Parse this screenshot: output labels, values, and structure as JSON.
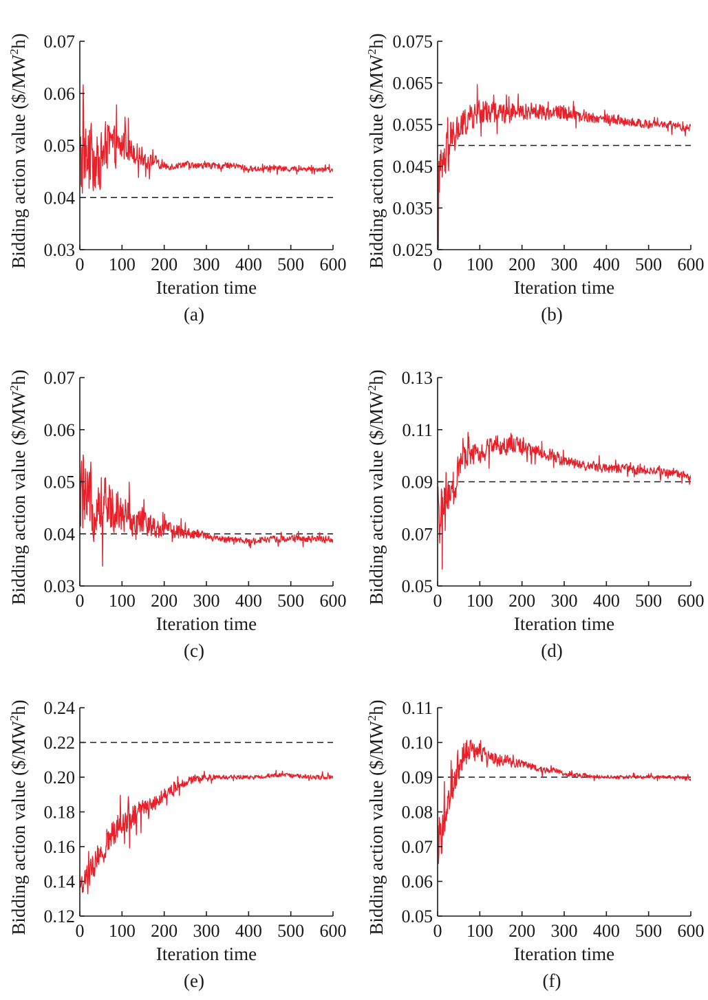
{
  "chart_data": [
    {
      "panel": "(a)",
      "type": "line",
      "xlabel": "Iteration time",
      "ylabel": "Bidding action value ($/MW",
      "ylabel_sup": "2",
      "ylabel_end": "h)",
      "xlim": [
        0,
        600
      ],
      "ylim": [
        0.03,
        0.07
      ],
      "xticks": [
        "0",
        "100",
        "200",
        "300",
        "400",
        "500",
        "600"
      ],
      "yticks": [
        "0.03",
        "0.04",
        "0.05",
        "0.06",
        "0.07"
      ],
      "reference": 0.04,
      "series": [
        {
          "color": "#e8202a",
          "x": [
            0,
            10,
            20,
            30,
            40,
            50,
            60,
            70,
            80,
            90,
            100,
            110,
            120,
            130,
            140,
            150,
            160,
            170,
            180,
            190,
            200,
            225,
            250,
            275,
            300,
            325,
            350,
            375,
            400,
            425,
            450,
            475,
            500,
            525,
            550,
            575,
            600
          ],
          "y": [
            0.045,
            0.049,
            0.047,
            0.048,
            0.046,
            0.047,
            0.05,
            0.05,
            0.05,
            0.049,
            0.05,
            0.05,
            0.049,
            0.049,
            0.048,
            0.048,
            0.047,
            0.047,
            0.047,
            0.046,
            0.046,
            0.046,
            0.0465,
            0.046,
            0.0462,
            0.046,
            0.0462,
            0.046,
            0.0455,
            0.0455,
            0.0458,
            0.0455,
            0.0455,
            0.0455,
            0.0455,
            0.0455,
            0.0452
          ],
          "noise": [
            0.015,
            0.012,
            0.011,
            0.01,
            0.009,
            0.008,
            0.008,
            0.007,
            0.006,
            0.006,
            0.006,
            0.005,
            0.004,
            0.004,
            0.003,
            0.003,
            0.0025,
            0.002,
            0.0018,
            0.0015,
            0.0012,
            0.001,
            0.001,
            0.001,
            0.001,
            0.0009,
            0.0009,
            0.0009,
            0.0009,
            0.0008,
            0.0008,
            0.0008,
            0.0008,
            0.0008,
            0.0008,
            0.0008,
            0.0008
          ]
        }
      ]
    },
    {
      "panel": "(b)",
      "type": "line",
      "xlabel": "Iteration time",
      "ylabel": "Bidding action value ($/MW",
      "ylabel_sup": "2",
      "ylabel_end": "h)",
      "xlim": [
        0,
        600
      ],
      "ylim": [
        0.025,
        0.075
      ],
      "xticks": [
        "0",
        "100",
        "200",
        "300",
        "400",
        "500",
        "600"
      ],
      "yticks": [
        "0.025",
        "0.035",
        "0.045",
        "0.055",
        "0.065",
        "0.075"
      ],
      "reference": 0.05,
      "series": [
        {
          "color": "#e8202a",
          "x": [
            0,
            10,
            20,
            30,
            40,
            50,
            60,
            70,
            80,
            90,
            100,
            120,
            140,
            160,
            180,
            200,
            225,
            250,
            275,
            300,
            325,
            350,
            375,
            400,
            425,
            450,
            475,
            500,
            525,
            550,
            575,
            600
          ],
          "y": [
            0.04,
            0.044,
            0.047,
            0.05,
            0.052,
            0.054,
            0.055,
            0.056,
            0.057,
            0.057,
            0.058,
            0.058,
            0.058,
            0.0578,
            0.058,
            0.058,
            0.0585,
            0.058,
            0.058,
            0.058,
            0.0575,
            0.057,
            0.0565,
            0.0565,
            0.056,
            0.0555,
            0.0555,
            0.055,
            0.055,
            0.055,
            0.0545,
            0.054
          ],
          "noise": [
            0.012,
            0.01,
            0.009,
            0.008,
            0.007,
            0.006,
            0.006,
            0.005,
            0.005,
            0.005,
            0.005,
            0.0045,
            0.004,
            0.004,
            0.0035,
            0.0035,
            0.003,
            0.003,
            0.003,
            0.003,
            0.0025,
            0.0025,
            0.002,
            0.002,
            0.002,
            0.0018,
            0.0015,
            0.0015,
            0.0015,
            0.0015,
            0.0015,
            0.0015
          ]
        }
      ]
    },
    {
      "panel": "(c)",
      "type": "line",
      "xlabel": "Iteration time",
      "ylabel": "Bidding action value ($/MW",
      "ylabel_sup": "2",
      "ylabel_end": "h)",
      "xlim": [
        0,
        600
      ],
      "ylim": [
        0.03,
        0.07
      ],
      "xticks": [
        "0",
        "100",
        "200",
        "300",
        "400",
        "500",
        "600"
      ],
      "yticks": [
        "0.03",
        "0.04",
        "0.05",
        "0.06",
        "0.07"
      ],
      "reference": 0.04,
      "series": [
        {
          "color": "#e8202a",
          "x": [
            0,
            10,
            20,
            30,
            40,
            50,
            60,
            70,
            80,
            90,
            100,
            120,
            140,
            160,
            180,
            200,
            220,
            240,
            260,
            280,
            300,
            325,
            350,
            375,
            400,
            425,
            450,
            475,
            500,
            525,
            550,
            575,
            600
          ],
          "y": [
            0.047,
            0.047,
            0.046,
            0.046,
            0.046,
            0.046,
            0.046,
            0.045,
            0.045,
            0.045,
            0.044,
            0.043,
            0.042,
            0.042,
            0.041,
            0.041,
            0.0405,
            0.0405,
            0.04,
            0.04,
            0.0395,
            0.039,
            0.039,
            0.0388,
            0.0385,
            0.0388,
            0.039,
            0.039,
            0.039,
            0.039,
            0.039,
            0.039,
            0.039
          ],
          "noise": [
            0.012,
            0.011,
            0.01,
            0.01,
            0.009,
            0.009,
            0.008,
            0.008,
            0.007,
            0.007,
            0.006,
            0.005,
            0.004,
            0.004,
            0.003,
            0.003,
            0.0025,
            0.002,
            0.002,
            0.0015,
            0.0012,
            0.001,
            0.001,
            0.001,
            0.001,
            0.001,
            0.001,
            0.001,
            0.001,
            0.001,
            0.001,
            0.001,
            0.001
          ]
        }
      ]
    },
    {
      "panel": "(d)",
      "type": "line",
      "xlabel": "Iteration time",
      "ylabel": "Bidding action value ($/MW",
      "ylabel_sup": "2",
      "ylabel_end": "h)",
      "xlim": [
        0,
        600
      ],
      "ylim": [
        0.05,
        0.13
      ],
      "xticks": [
        "0",
        "100",
        "200",
        "300",
        "400",
        "500",
        "600"
      ],
      "yticks": [
        "0.05",
        "0.07",
        "0.09",
        "0.11",
        "0.13"
      ],
      "reference": 0.09,
      "series": [
        {
          "color": "#e8202a",
          "x": [
            0,
            10,
            20,
            30,
            40,
            50,
            60,
            70,
            80,
            90,
            100,
            120,
            140,
            160,
            180,
            200,
            225,
            250,
            275,
            300,
            325,
            350,
            375,
            400,
            425,
            450,
            475,
            500,
            525,
            550,
            575,
            600
          ],
          "y": [
            0.075,
            0.078,
            0.08,
            0.083,
            0.088,
            0.095,
            0.098,
            0.1,
            0.1,
            0.1,
            0.102,
            0.103,
            0.104,
            0.104,
            0.105,
            0.103,
            0.102,
            0.101,
            0.1,
            0.098,
            0.097,
            0.096,
            0.096,
            0.095,
            0.095,
            0.095,
            0.094,
            0.094,
            0.094,
            0.093,
            0.093,
            0.092
          ],
          "noise": [
            0.02,
            0.016,
            0.014,
            0.013,
            0.012,
            0.01,
            0.008,
            0.007,
            0.007,
            0.007,
            0.006,
            0.006,
            0.006,
            0.006,
            0.006,
            0.005,
            0.004,
            0.004,
            0.004,
            0.003,
            0.003,
            0.003,
            0.003,
            0.003,
            0.003,
            0.003,
            0.003,
            0.0025,
            0.0025,
            0.0025,
            0.0025,
            0.0025
          ]
        }
      ]
    },
    {
      "panel": "(e)",
      "type": "line",
      "xlabel": "Iteration time",
      "ylabel": "Bidding action value ($/MW",
      "ylabel_sup": "2",
      "ylabel_end": "h)",
      "xlim": [
        0,
        600
      ],
      "ylim": [
        0.12,
        0.24
      ],
      "xticks": [
        "0",
        "100",
        "200",
        "300",
        "400",
        "500",
        "600"
      ],
      "yticks": [
        "0.12",
        "0.14",
        "0.16",
        "0.18",
        "0.20",
        "0.22",
        "0.24"
      ],
      "reference": 0.22,
      "series": [
        {
          "color": "#e8202a",
          "x": [
            0,
            10,
            20,
            30,
            40,
            50,
            60,
            70,
            80,
            90,
            100,
            120,
            140,
            160,
            180,
            200,
            220,
            240,
            260,
            280,
            300,
            325,
            350,
            375,
            400,
            425,
            450,
            475,
            500,
            525,
            550,
            575,
            600
          ],
          "y": [
            0.138,
            0.14,
            0.143,
            0.147,
            0.152,
            0.155,
            0.16,
            0.165,
            0.168,
            0.172,
            0.175,
            0.178,
            0.18,
            0.183,
            0.186,
            0.19,
            0.193,
            0.196,
            0.198,
            0.199,
            0.2,
            0.2,
            0.2,
            0.2,
            0.2,
            0.2,
            0.201,
            0.201,
            0.201,
            0.2005,
            0.2,
            0.2,
            0.2
          ],
          "noise": [
            0.012,
            0.012,
            0.012,
            0.014,
            0.014,
            0.014,
            0.014,
            0.014,
            0.012,
            0.012,
            0.012,
            0.012,
            0.01,
            0.008,
            0.007,
            0.006,
            0.005,
            0.004,
            0.004,
            0.003,
            0.003,
            0.002,
            0.002,
            0.002,
            0.002,
            0.002,
            0.002,
            0.002,
            0.002,
            0.002,
            0.002,
            0.002,
            0.002
          ]
        }
      ]
    },
    {
      "panel": "(f)",
      "type": "line",
      "xlabel": "Iteration time",
      "ylabel": "Bidding action value ($/MW",
      "ylabel_sup": "2",
      "ylabel_end": "h)",
      "xlim": [
        0,
        600
      ],
      "ylim": [
        0.05,
        0.11
      ],
      "xticks": [
        "0",
        "100",
        "200",
        "300",
        "400",
        "500",
        "600"
      ],
      "yticks": [
        "0.05",
        "0.06",
        "0.07",
        "0.08",
        "0.09",
        "0.10",
        "0.11"
      ],
      "reference": 0.09,
      "series": [
        {
          "color": "#e8202a",
          "x": [
            0,
            10,
            20,
            30,
            40,
            50,
            60,
            70,
            80,
            90,
            100,
            120,
            140,
            160,
            180,
            200,
            225,
            250,
            275,
            300,
            325,
            350,
            375,
            400,
            425,
            450,
            475,
            500,
            525,
            550,
            575,
            600
          ],
          "y": [
            0.07,
            0.075,
            0.08,
            0.085,
            0.09,
            0.094,
            0.096,
            0.097,
            0.098,
            0.098,
            0.097,
            0.096,
            0.095,
            0.095,
            0.094,
            0.094,
            0.093,
            0.092,
            0.092,
            0.091,
            0.0905,
            0.0905,
            0.09,
            0.09,
            0.09,
            0.09,
            0.09,
            0.09,
            0.09,
            0.09,
            0.09,
            0.0895
          ],
          "noise": [
            0.012,
            0.011,
            0.01,
            0.009,
            0.008,
            0.008,
            0.007,
            0.006,
            0.005,
            0.004,
            0.004,
            0.003,
            0.003,
            0.0025,
            0.002,
            0.002,
            0.0015,
            0.0015,
            0.0012,
            0.001,
            0.001,
            0.001,
            0.0008,
            0.0008,
            0.0008,
            0.0008,
            0.0008,
            0.0008,
            0.0008,
            0.0008,
            0.0008,
            0.0008
          ]
        }
      ]
    }
  ]
}
